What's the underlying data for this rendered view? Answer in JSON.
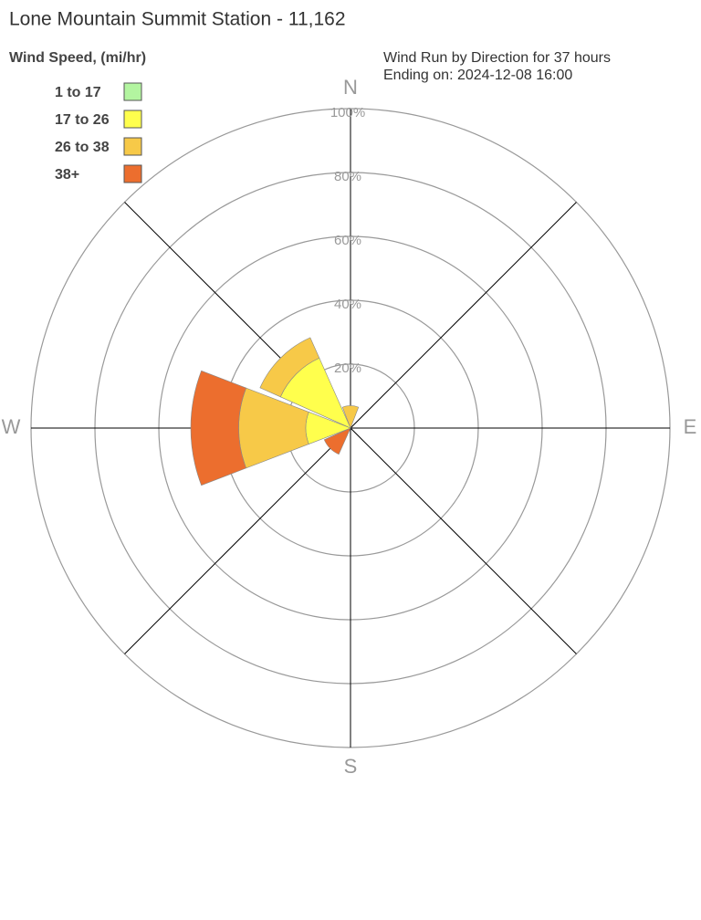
{
  "chart_data": {
    "type": "windrose",
    "title": "Lone Mountain Summit Station - 11,162",
    "legend_title": "Wind Speed, (mi/hr)",
    "subtitle": [
      "Wind Run by Direction for 37 hours",
      "Ending on: 2024-12-08 16:00"
    ],
    "categories": [
      "N",
      null,
      "E",
      null,
      "S",
      null,
      "W",
      null
    ],
    "rlim": [
      0,
      100
    ],
    "rticks": [
      {
        "value": 20,
        "label": "20%"
      },
      {
        "value": 40,
        "label": "40%"
      },
      {
        "value": 60,
        "label": "60%"
      },
      {
        "value": 80,
        "label": "80%"
      },
      {
        "value": 100,
        "label": "100%"
      }
    ],
    "series": [
      {
        "name": "1 to 17",
        "color": "#b3f5a0",
        "values": [
          0,
          0,
          0,
          0,
          0,
          0,
          0,
          0
        ]
      },
      {
        "name": "17 to 26",
        "color": "#ffff4d",
        "values": [
          0,
          0,
          0,
          0,
          0,
          0,
          14,
          24
        ]
      },
      {
        "name": "26 to 38",
        "color": "#f7c948",
        "values": [
          7,
          0,
          0,
          0,
          0,
          0,
          21,
          7
        ]
      },
      {
        "name": "38+",
        "color": "#ec6e2e",
        "values": [
          0,
          0,
          0,
          0,
          0,
          9,
          15,
          0
        ]
      }
    ]
  }
}
